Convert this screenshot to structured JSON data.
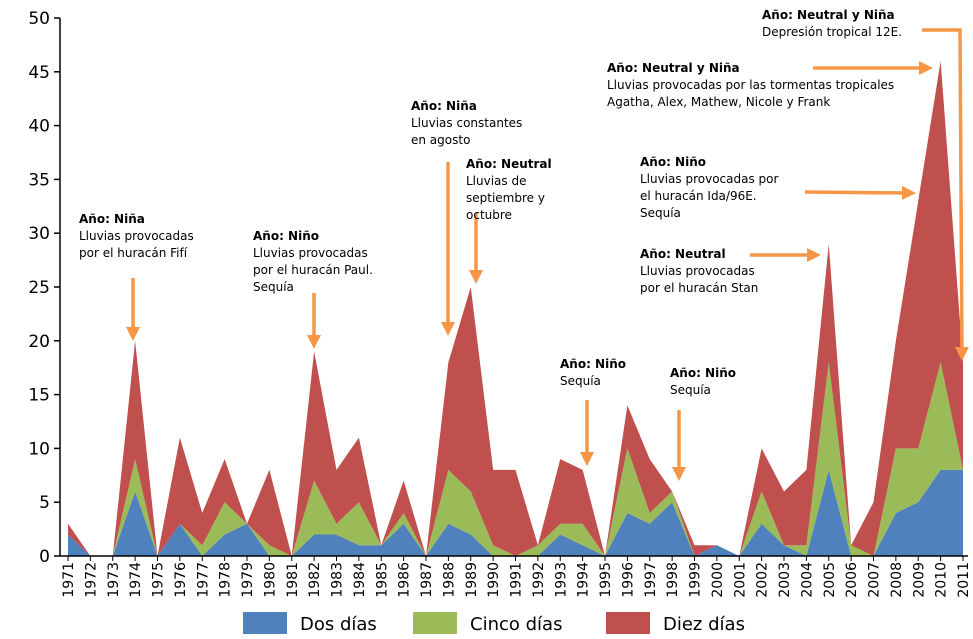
{
  "chart_data": {
    "type": "stacked_area",
    "categories": [
      "1971",
      "1972",
      "1973",
      "1974",
      "1975",
      "1976",
      "1977",
      "1978",
      "1979",
      "1980",
      "1981",
      "1982",
      "1983",
      "1984",
      "1985",
      "1986",
      "1987",
      "1988",
      "1989",
      "1990",
      "1991",
      "1992",
      "1993",
      "1994",
      "1995",
      "1996",
      "1997",
      "1998",
      "1999",
      "2000",
      "2001",
      "2002",
      "2003",
      "2004",
      "2005",
      "2006",
      "2007",
      "2008",
      "2009",
      "2010",
      "2011"
    ],
    "series": [
      {
        "name": "Dos días",
        "color": "#4f81bd",
        "values": [
          2,
          0,
          0,
          6,
          0,
          3,
          0,
          2,
          3,
          0,
          0,
          2,
          2,
          1,
          1,
          3,
          0,
          3,
          2,
          0,
          0,
          0,
          2,
          1,
          0,
          4,
          3,
          5,
          0,
          1,
          0,
          3,
          1,
          0,
          8,
          0,
          0,
          4,
          5,
          8,
          8
        ]
      },
      {
        "name": "Cinco días",
        "color": "#9bbb59",
        "values": [
          0,
          0,
          0,
          3,
          0,
          0,
          1,
          3,
          0,
          1,
          0,
          5,
          1,
          4,
          0,
          1,
          0,
          5,
          4,
          1,
          0,
          1,
          1,
          2,
          0,
          6,
          1,
          1,
          0,
          0,
          0,
          3,
          0,
          1,
          10,
          1,
          0,
          6,
          5,
          10,
          0
        ]
      },
      {
        "name": "Diez días",
        "color": "#c0504d",
        "values": [
          1,
          0,
          0,
          11,
          0,
          8,
          3,
          4,
          0,
          7,
          0,
          12,
          5,
          6,
          0,
          3,
          0,
          10,
          19,
          7,
          8,
          0,
          6,
          5,
          0,
          4,
          5,
          0,
          1,
          0,
          0,
          4,
          5,
          7,
          11,
          0,
          5,
          10,
          23,
          28,
          10
        ]
      }
    ],
    "ylim": [
      0,
      50
    ],
    "yticks": [
      0,
      5,
      10,
      15,
      20,
      25,
      30,
      35,
      40,
      45,
      50
    ],
    "annotations": [
      {
        "bold": "Año: Niña",
        "lines": [
          "Lluvias provocadas",
          "por el huracán Fifí"
        ]
      },
      {
        "bold": "Año: Niño",
        "lines": [
          "Lluvias provocadas",
          "por el huracán Paul.",
          "Sequía"
        ]
      },
      {
        "bold": "Año: Niña",
        "lines": [
          "Lluvias constantes",
          "en agosto"
        ]
      },
      {
        "bold": "Año: Neutral",
        "lines": [
          "Lluvias de",
          "septiembre y",
          "octubre"
        ]
      },
      {
        "bold": "Año: Niño",
        "lines": [
          "Sequía"
        ]
      },
      {
        "bold": "Año: Niño",
        "lines": [
          "Sequía"
        ]
      },
      {
        "bold": "Año: Neutral",
        "lines": [
          "Lluvias provocadas",
          "por el huracán Stan"
        ]
      },
      {
        "bold": "Año: Niño",
        "lines": [
          "Lluvias provocadas por",
          "el huracán Ida/96E.",
          "Sequía"
        ]
      },
      {
        "bold": "Año: Neutral y Niña",
        "lines": [
          "Lluvias provocadas por las tormentas tropicales",
          "Agatha, Alex, Mathew, Nicole y Frank"
        ]
      },
      {
        "bold": "Año: Neutral y Niña",
        "lines": [
          "Depresión tropical 12E."
        ]
      }
    ]
  }
}
